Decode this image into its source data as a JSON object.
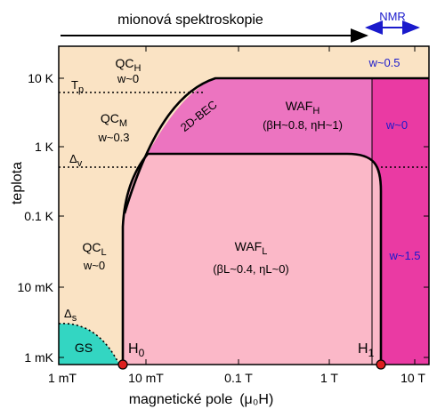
{
  "header": {
    "muon_label": "mionová spektroskopie",
    "nmr_label": "NMR"
  },
  "axes": {
    "ylabel": "teplota",
    "xlabel": "magnetické pole",
    "xlabel_symbol": "(μ₀H)",
    "x_scale": "log",
    "y_scale": "log",
    "x_ticks": [
      "1 mT",
      "10 mT",
      "0.1 T",
      "1 T",
      "10 T"
    ],
    "y_ticks": [
      "10 K",
      "1 K",
      "0.1 K",
      "10 mK",
      "1 mK"
    ]
  },
  "regions": {
    "qch": {
      "label": "QC",
      "sub": "H",
      "param": "w~0"
    },
    "qcm": {
      "label": "QC",
      "sub": "M",
      "param": "w~0.3"
    },
    "qcl": {
      "label": "QC",
      "sub": "L",
      "param": "w~0"
    },
    "gs": {
      "label": "GS"
    },
    "bec": {
      "label": "2D-BEC"
    },
    "wafh": {
      "label": "WAF",
      "sub": "H",
      "param": "(βH~0.8, ηH~1)"
    },
    "wafl": {
      "label": "WAF",
      "sub": "L",
      "param": "(βL~0.4, ηL~0)"
    },
    "right_top": {
      "param": "w~0.5"
    },
    "right_mid": {
      "param": "w~0"
    },
    "right_low": {
      "param": "w~1.5"
    }
  },
  "crossovers": {
    "tp": {
      "label": "T",
      "sub": "p"
    },
    "delta_v": {
      "label": "Δ",
      "sub": "v"
    },
    "delta_s": {
      "label": "Δ",
      "sub": "s"
    }
  },
  "critical_points": {
    "h0": {
      "label": "H",
      "sub": "0"
    },
    "h1": {
      "label": "H",
      "sub": "1"
    }
  },
  "colors": {
    "qc": "#fae3c4",
    "gs": "#33d6c2",
    "wafh": "#ec74c0",
    "wafl": "#fbb8c8",
    "right": "#ea3aa3",
    "nmr": "#1a1acc",
    "point": "#dd1f1f"
  }
}
